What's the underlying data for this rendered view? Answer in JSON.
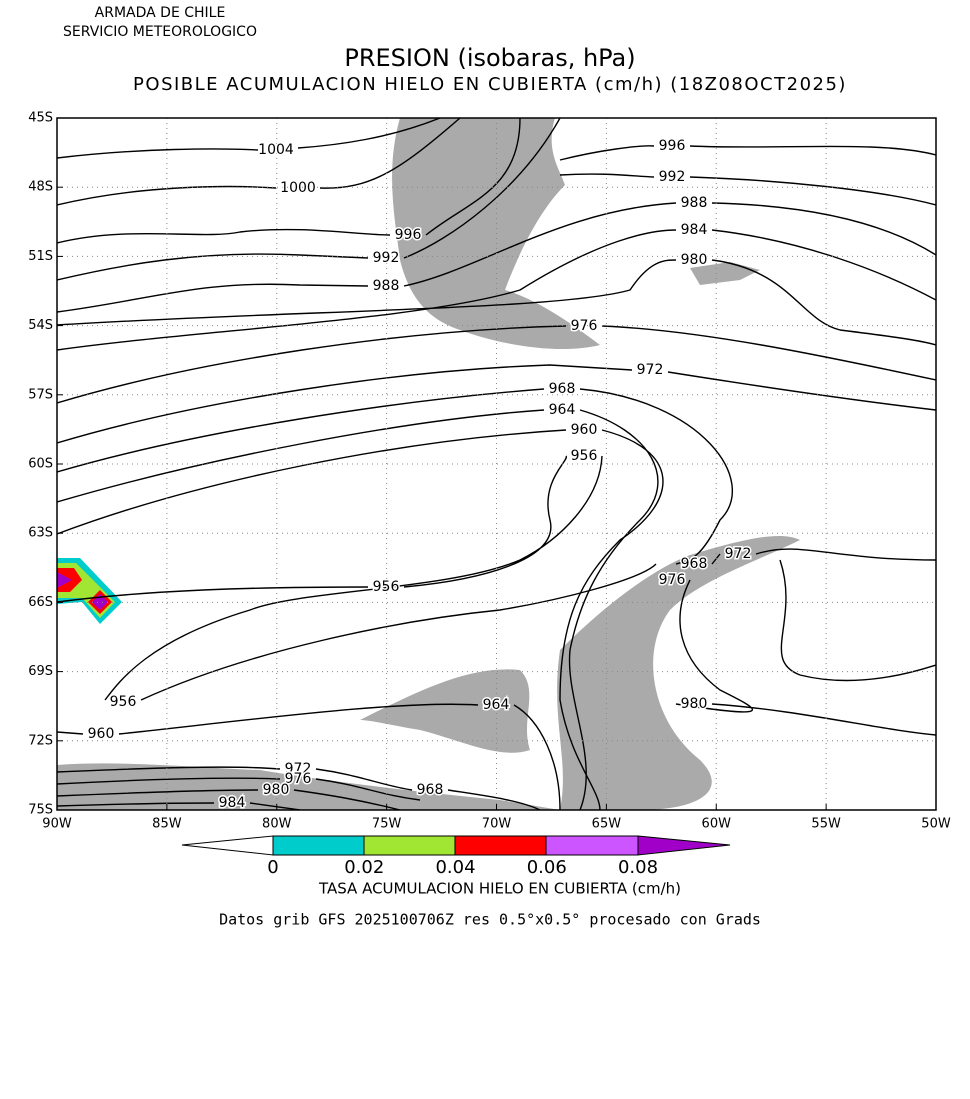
{
  "header": {
    "org": "ARMADA DE CHILE",
    "service": "SERVICIO METEOROLOGICO"
  },
  "title": "PRESION (isobaras, hPa)",
  "subtitle": "POSIBLE ACUMULACION HIELO EN CUBIERTA (cm/h) (18Z08OCT2025)",
  "map": {
    "lat_labels": [
      "45S",
      "48S",
      "51S",
      "54S",
      "57S",
      "60S",
      "63S",
      "66S",
      "69S",
      "72S",
      "75S"
    ],
    "lon_labels": [
      "90W",
      "85W",
      "80W",
      "75W",
      "70W",
      "65W",
      "60W",
      "55W",
      "50W"
    ],
    "isobar_labels": [
      "1004",
      "1000",
      "996",
      "992",
      "988",
      "996",
      "992",
      "988",
      "984",
      "980",
      "976",
      "972",
      "968",
      "964",
      "960",
      "956",
      "956",
      "968",
      "972",
      "976",
      "956",
      "964",
      "980",
      "960",
      "972",
      "976",
      "980",
      "968",
      "984"
    ]
  },
  "colorbar": {
    "labels": [
      "0",
      "0.02",
      "0.04",
      "0.06",
      "0.08"
    ],
    "title": "TASA ACUMULACION HIELO EN CUBIERTA (cm/h)"
  },
  "footer": "Datos grib GFS 2025100706Z res 0.5°x0.5° procesado con Grads"
}
